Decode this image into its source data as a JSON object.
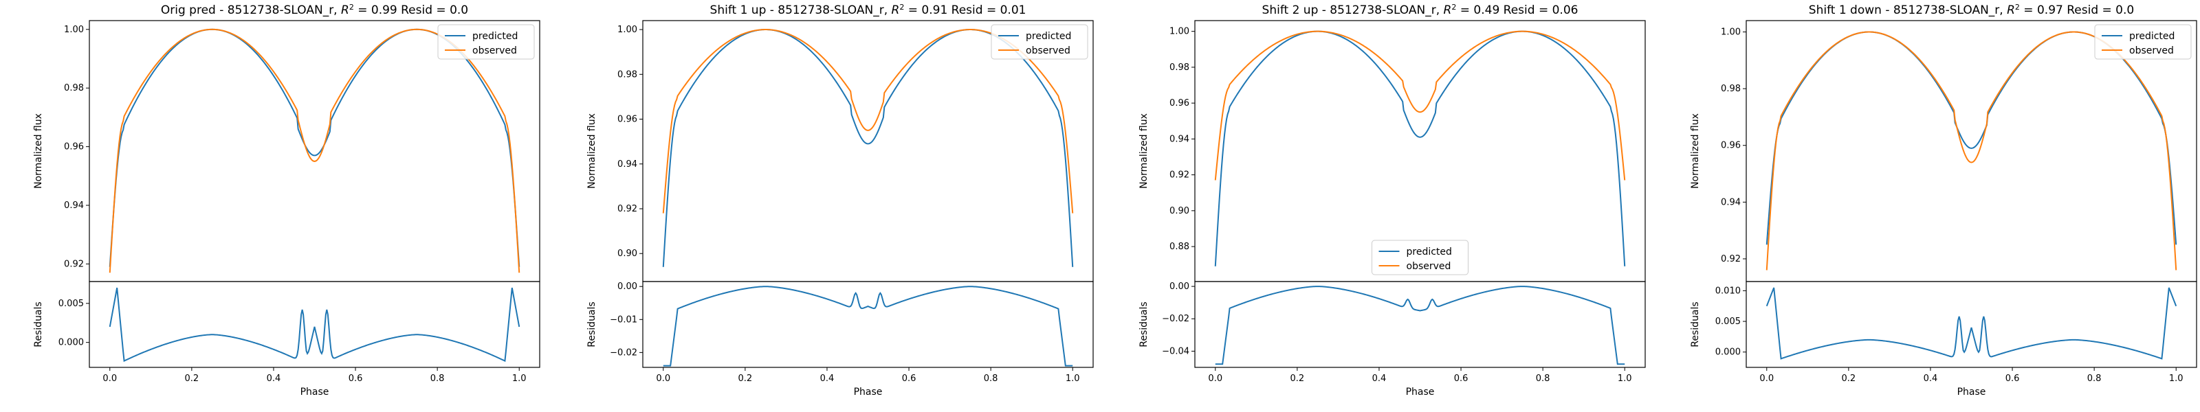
{
  "page": {
    "background": "#ffffff",
    "colors": {
      "predicted": "#1f77b4",
      "observed": "#ff7f0e",
      "axis": "#000000"
    }
  },
  "chart_data": [
    {
      "type": "line",
      "title": "Orig pred - 8512738-SLOAN_r, R² = 0.99 Resid = 0.0",
      "title_main": "Orig pred - 8512738-SLOAN_r, ",
      "title_r2": "0.99",
      "title_resid": " Resid = 0.0",
      "xlabel": "Phase",
      "ylabel": "Normalized flux",
      "resid_ylabel": "Residuals",
      "xlim": [
        -0.05,
        1.05
      ],
      "ylim": [
        0.914,
        1.003
      ],
      "resid_ylim": [
        -0.0032,
        0.0078
      ],
      "xticks": [
        0.0,
        0.2,
        0.4,
        0.6,
        0.8,
        1.0
      ],
      "xtick_labels": [
        "0.0",
        "0.2",
        "0.4",
        "0.6",
        "0.8",
        "1.0"
      ],
      "yticks": [
        0.92,
        0.94,
        0.96,
        0.98,
        1.0
      ],
      "ytick_labels": [
        "0.92",
        "0.94",
        "0.96",
        "0.98",
        "1.00"
      ],
      "resid_yticks": [
        0.0,
        0.005
      ],
      "resid_ytick_labels": [
        "0.000",
        "0.005"
      ],
      "legend": {
        "position": "upper right",
        "entries": [
          "predicted",
          "observed"
        ]
      },
      "series": [
        {
          "name": "predicted",
          "edge": 0.919,
          "shoulder": 0.966,
          "quarter": 0.966,
          "eclipse": 0.957
        },
        {
          "name": "observed",
          "edge": 0.917,
          "shoulder": 0.969,
          "quarter": 0.969,
          "eclipse": 0.955
        }
      ],
      "residual_shape": {
        "ends": 0.002,
        "peak": 0.007,
        "floor": -0.0025,
        "mid": 0.001,
        "bump": 0.0042,
        "center": 0.002
      }
    },
    {
      "type": "line",
      "title": "Shift 1 up - 8512738-SLOAN_r, R² = 0.91 Resid = 0.01",
      "title_main": "Shift 1 up - 8512738-SLOAN_r, ",
      "title_r2": "0.91",
      "title_resid": " Resid = 0.01",
      "xlabel": "Phase",
      "ylabel": "Normalized flux",
      "resid_ylabel": "Residuals",
      "xlim": [
        -0.05,
        1.05
      ],
      "ylim": [
        0.8875,
        1.004
      ],
      "resid_ylim": [
        -0.0245,
        0.0015
      ],
      "xticks": [
        0.0,
        0.2,
        0.4,
        0.6,
        0.8,
        1.0
      ],
      "xtick_labels": [
        "0.0",
        "0.2",
        "0.4",
        "0.6",
        "0.8",
        "1.0"
      ],
      "yticks": [
        0.9,
        0.92,
        0.94,
        0.96,
        0.98,
        1.0
      ],
      "ytick_labels": [
        "0.90",
        "0.92",
        "0.94",
        "0.96",
        "0.98",
        "1.00"
      ],
      "resid_yticks": [
        -0.02,
        -0.01,
        0.0
      ],
      "resid_ytick_labels": [
        "−0.02",
        "−0.01",
        "0.00"
      ],
      "legend": {
        "position": "upper right",
        "entries": [
          "predicted",
          "observed"
        ]
      },
      "series": [
        {
          "name": "predicted",
          "edge": 0.894,
          "shoulder": 0.962,
          "quarter": 0.962,
          "eclipse": 0.949
        },
        {
          "name": "observed",
          "edge": 0.918,
          "shoulder": 0.969,
          "quarter": 0.969,
          "eclipse": 0.955
        }
      ],
      "residual_shape": {
        "ends": -0.024,
        "peak": -0.024,
        "floor": -0.007,
        "mid": 0.0,
        "bump": -0.002,
        "center": -0.006
      }
    },
    {
      "type": "line",
      "title": "Shift 2 up - 8512738-SLOAN_r, R² = 0.49 Resid = 0.06",
      "title_main": "Shift 2 up - 8512738-SLOAN_r, ",
      "title_r2": "0.49",
      "title_resid": " Resid = 0.06",
      "xlabel": "Phase",
      "ylabel": "Normalized flux",
      "resid_ylabel": "Residuals",
      "xlim": [
        -0.05,
        1.05
      ],
      "ylim": [
        0.8605,
        1.006
      ],
      "resid_ylim": [
        -0.05,
        0.003
      ],
      "xticks": [
        0.0,
        0.2,
        0.4,
        0.6,
        0.8,
        1.0
      ],
      "xtick_labels": [
        "0.0",
        "0.2",
        "0.4",
        "0.6",
        "0.8",
        "1.0"
      ],
      "yticks": [
        0.88,
        0.9,
        0.92,
        0.94,
        0.96,
        0.98,
        1.0
      ],
      "ytick_labels": [
        "0.88",
        "0.90",
        "0.92",
        "0.94",
        "0.96",
        "0.98",
        "1.00"
      ],
      "resid_yticks": [
        -0.04,
        -0.02,
        0.0
      ],
      "resid_ytick_labels": [
        "−0.04",
        "−0.02",
        "0.00"
      ],
      "legend": {
        "position": "lower center",
        "entries": [
          "predicted",
          "observed"
        ]
      },
      "series": [
        {
          "name": "predicted",
          "edge": 0.869,
          "shoulder": 0.956,
          "quarter": 0.956,
          "eclipse": 0.941
        },
        {
          "name": "observed",
          "edge": 0.917,
          "shoulder": 0.969,
          "quarter": 0.969,
          "eclipse": 0.955
        }
      ],
      "residual_shape": {
        "ends": -0.048,
        "peak": -0.048,
        "floor": -0.014,
        "mid": 0.0,
        "bump": -0.008,
        "center": -0.015
      }
    },
    {
      "type": "line",
      "title": "Shift 1 down - 8512738-SLOAN_r, R² = 0.97 Resid = 0.0",
      "title_main": "Shift 1 down - 8512738-SLOAN_r, ",
      "title_r2": "0.97",
      "title_resid": " Resid = 0.0",
      "xlabel": "Phase",
      "ylabel": "Normalized flux",
      "resid_ylabel": "Residuals",
      "xlim": [
        -0.05,
        1.05
      ],
      "ylim": [
        0.912,
        1.004
      ],
      "resid_ylim": [
        -0.0025,
        0.0115
      ],
      "xticks": [
        0.0,
        0.2,
        0.4,
        0.6,
        0.8,
        1.0
      ],
      "xtick_labels": [
        "0.0",
        "0.2",
        "0.4",
        "0.6",
        "0.8",
        "1.0"
      ],
      "yticks": [
        0.92,
        0.94,
        0.96,
        0.98,
        1.0
      ],
      "ytick_labels": [
        "0.92",
        "0.94",
        "0.96",
        "0.98",
        "1.00"
      ],
      "resid_yticks": [
        0.0,
        0.005,
        0.01
      ],
      "resid_ytick_labels": [
        "0.000",
        "0.005",
        "0.010"
      ],
      "legend": {
        "position": "upper right",
        "entries": [
          "predicted",
          "observed"
        ]
      },
      "series": [
        {
          "name": "predicted",
          "edge": 0.925,
          "shoulder": 0.968,
          "quarter": 0.968,
          "eclipse": 0.959
        },
        {
          "name": "observed",
          "edge": 0.916,
          "shoulder": 0.969,
          "quarter": 0.969,
          "eclipse": 0.954
        }
      ],
      "residual_shape": {
        "ends": 0.0075,
        "peak": 0.0105,
        "floor": -0.0012,
        "mid": 0.002,
        "bump": 0.0058,
        "center": 0.004
      }
    }
  ]
}
